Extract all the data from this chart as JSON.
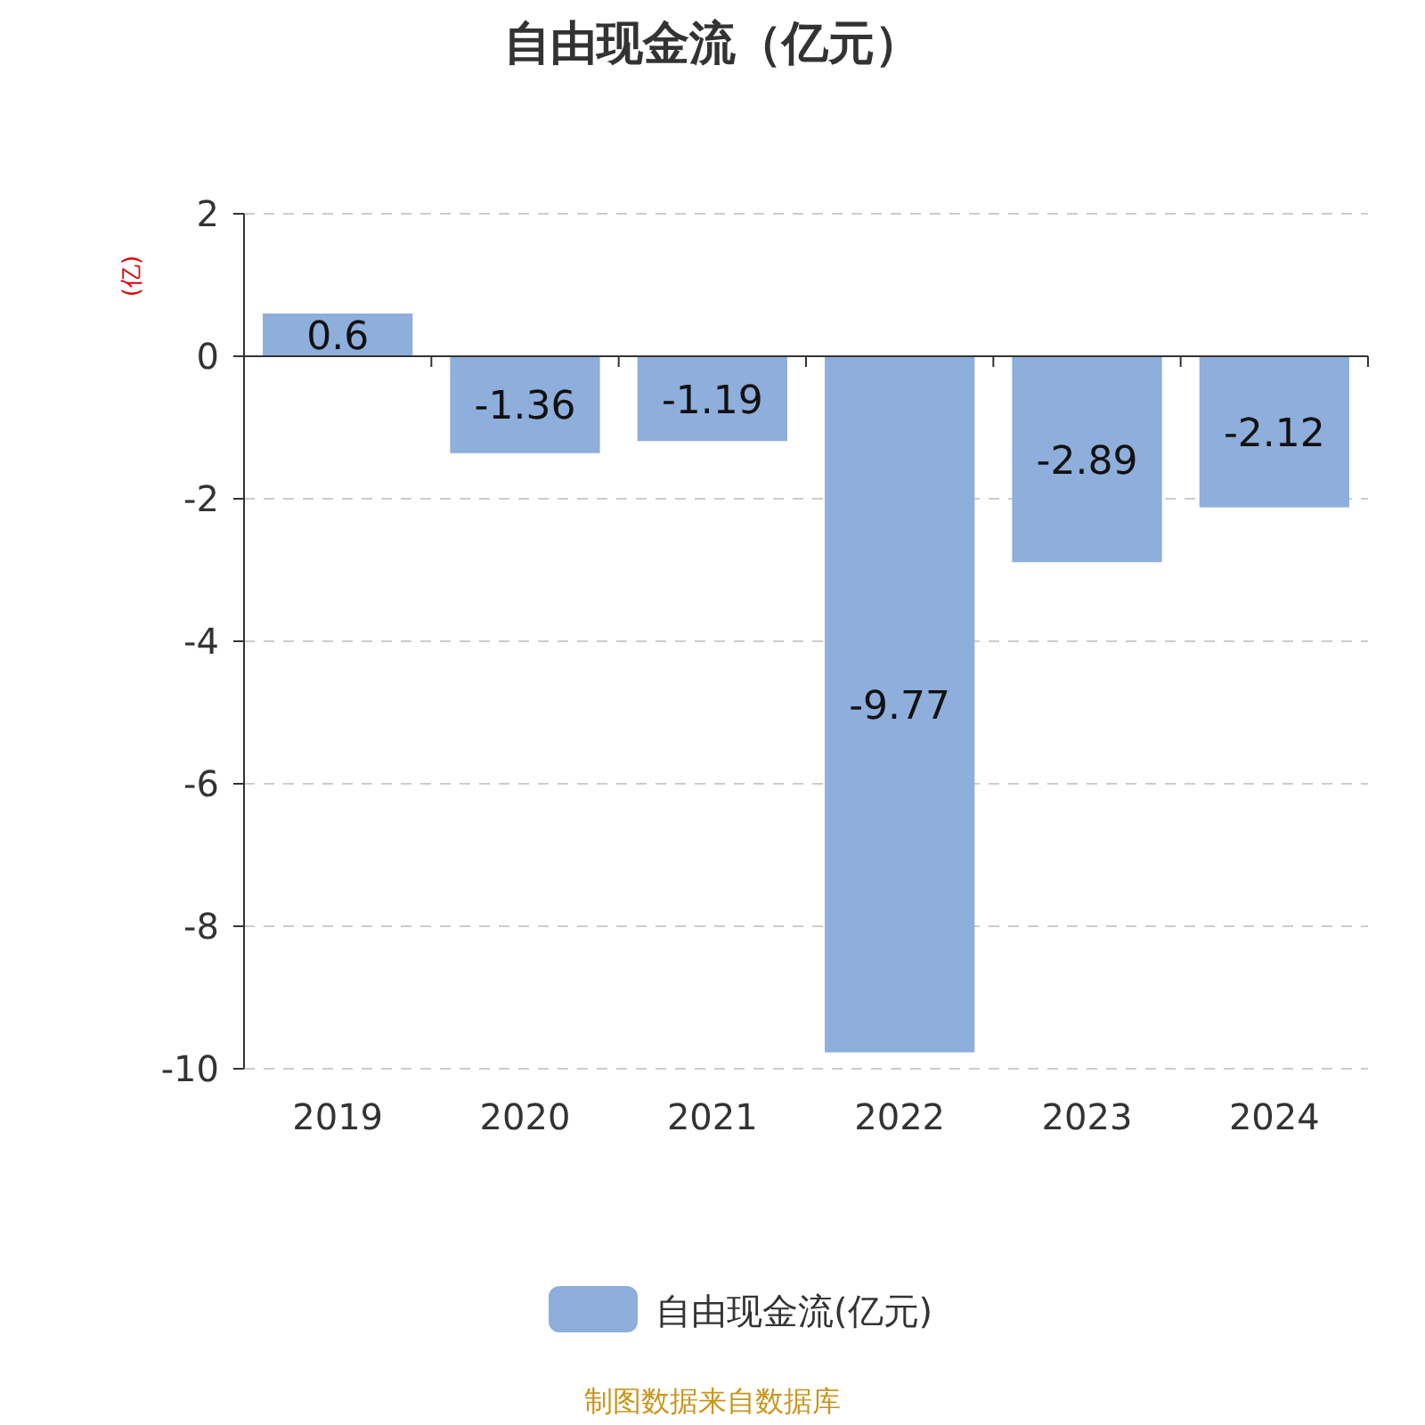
{
  "chart_data": {
    "type": "bar",
    "title": "自由现金流（亿元）",
    "ylabel": "(亿)",
    "categories": [
      "2019",
      "2020",
      "2021",
      "2022",
      "2023",
      "2024"
    ],
    "series": [
      {
        "name": "自由现金流(亿元)",
        "color": "#8eaedb",
        "values": [
          0.6,
          -1.36,
          -1.19,
          -9.77,
          -2.89,
          -2.12
        ]
      }
    ],
    "ylim": [
      -10,
      2
    ],
    "yticks": [
      -10,
      -8,
      -6,
      -4,
      -2,
      0,
      2
    ],
    "grid": "y",
    "legend": "bottom",
    "data_labels": true,
    "annotations": [
      "制图数据来自数据库"
    ]
  }
}
